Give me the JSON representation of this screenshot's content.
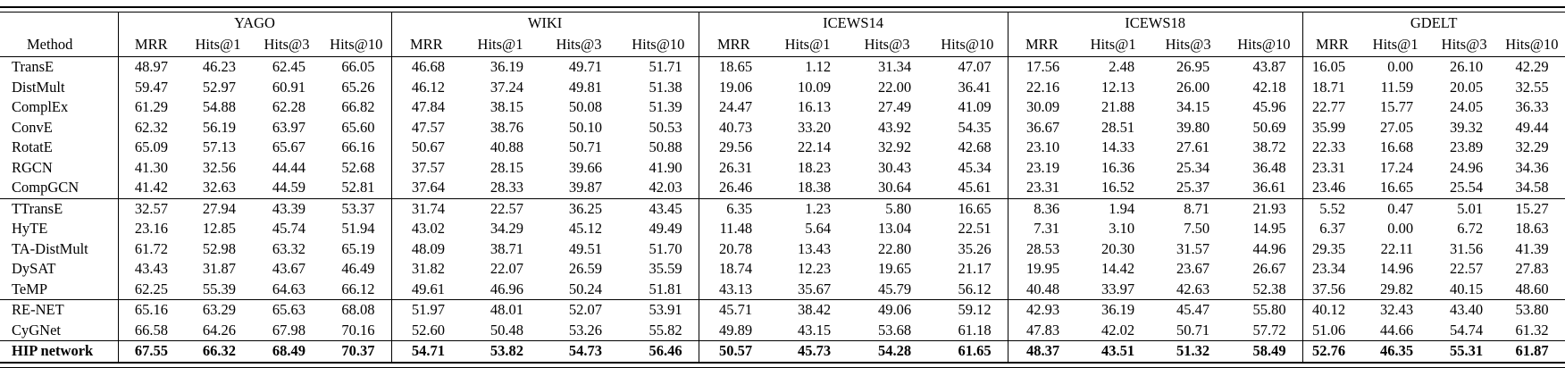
{
  "colors": {
    "text": "#000000",
    "background": "#ffffff"
  },
  "table": {
    "method_header": "Method",
    "datasets": [
      "YAGO",
      "WIKI",
      "ICEWS14",
      "ICEWS18",
      "GDELT"
    ],
    "metrics": [
      "MRR",
      "Hits@1",
      "Hits@3",
      "Hits@10"
    ],
    "sections": [
      {
        "rows": [
          {
            "method": "TransE",
            "values": [
              "48.97",
              "46.23",
              "62.45",
              "66.05",
              "46.68",
              "36.19",
              "49.71",
              "51.71",
              "18.65",
              "1.12",
              "31.34",
              "47.07",
              "17.56",
              "2.48",
              "26.95",
              "43.87",
              "16.05",
              "0.00",
              "26.10",
              "42.29"
            ]
          },
          {
            "method": "DistMult",
            "values": [
              "59.47",
              "52.97",
              "60.91",
              "65.26",
              "46.12",
              "37.24",
              "49.81",
              "51.38",
              "19.06",
              "10.09",
              "22.00",
              "36.41",
              "22.16",
              "12.13",
              "26.00",
              "42.18",
              "18.71",
              "11.59",
              "20.05",
              "32.55"
            ]
          },
          {
            "method": "ComplEx",
            "values": [
              "61.29",
              "54.88",
              "62.28",
              "66.82",
              "47.84",
              "38.15",
              "50.08",
              "51.39",
              "24.47",
              "16.13",
              "27.49",
              "41.09",
              "30.09",
              "21.88",
              "34.15",
              "45.96",
              "22.77",
              "15.77",
              "24.05",
              "36.33"
            ]
          },
          {
            "method": "ConvE",
            "values": [
              "62.32",
              "56.19",
              "63.97",
              "65.60",
              "47.57",
              "38.76",
              "50.10",
              "50.53",
              "40.73",
              "33.20",
              "43.92",
              "54.35",
              "36.67",
              "28.51",
              "39.80",
              "50.69",
              "35.99",
              "27.05",
              "39.32",
              "49.44"
            ]
          },
          {
            "method": "RotatE",
            "values": [
              "65.09",
              "57.13",
              "65.67",
              "66.16",
              "50.67",
              "40.88",
              "50.71",
              "50.88",
              "29.56",
              "22.14",
              "32.92",
              "42.68",
              "23.10",
              "14.33",
              "27.61",
              "38.72",
              "22.33",
              "16.68",
              "23.89",
              "32.29"
            ]
          },
          {
            "method": "RGCN",
            "values": [
              "41.30",
              "32.56",
              "44.44",
              "52.68",
              "37.57",
              "28.15",
              "39.66",
              "41.90",
              "26.31",
              "18.23",
              "30.43",
              "45.34",
              "23.19",
              "16.36",
              "25.34",
              "36.48",
              "23.31",
              "17.24",
              "24.96",
              "34.36"
            ]
          },
          {
            "method": "CompGCN",
            "values": [
              "41.42",
              "32.63",
              "44.59",
              "52.81",
              "37.64",
              "28.33",
              "39.87",
              "42.03",
              "26.46",
              "18.38",
              "30.64",
              "45.61",
              "23.31",
              "16.52",
              "25.37",
              "36.61",
              "23.46",
              "16.65",
              "25.54",
              "34.58"
            ]
          }
        ]
      },
      {
        "rows": [
          {
            "method": "TTransE",
            "values": [
              "32.57",
              "27.94",
              "43.39",
              "53.37",
              "31.74",
              "22.57",
              "36.25",
              "43.45",
              "6.35",
              "1.23",
              "5.80",
              "16.65",
              "8.36",
              "1.94",
              "8.71",
              "21.93",
              "5.52",
              "0.47",
              "5.01",
              "15.27"
            ]
          },
          {
            "method": "HyTE",
            "values": [
              "23.16",
              "12.85",
              "45.74",
              "51.94",
              "43.02",
              "34.29",
              "45.12",
              "49.49",
              "11.48",
              "5.64",
              "13.04",
              "22.51",
              "7.31",
              "3.10",
              "7.50",
              "14.95",
              "6.37",
              "0.00",
              "6.72",
              "18.63"
            ]
          },
          {
            "method": "TA-DistMult",
            "values": [
              "61.72",
              "52.98",
              "63.32",
              "65.19",
              "48.09",
              "38.71",
              "49.51",
              "51.70",
              "20.78",
              "13.43",
              "22.80",
              "35.26",
              "28.53",
              "20.30",
              "31.57",
              "44.96",
              "29.35",
              "22.11",
              "31.56",
              "41.39"
            ]
          },
          {
            "method": "DySAT",
            "values": [
              "43.43",
              "31.87",
              "43.67",
              "46.49",
              "31.82",
              "22.07",
              "26.59",
              "35.59",
              "18.74",
              "12.23",
              "19.65",
              "21.17",
              "19.95",
              "14.42",
              "23.67",
              "26.67",
              "23.34",
              "14.96",
              "22.57",
              "27.83"
            ]
          },
          {
            "method": "TeMP",
            "values": [
              "62.25",
              "55.39",
              "64.63",
              "66.12",
              "49.61",
              "46.96",
              "50.24",
              "51.81",
              "43.13",
              "35.67",
              "45.79",
              "56.12",
              "40.48",
              "33.97",
              "42.63",
              "52.38",
              "37.56",
              "29.82",
              "40.15",
              "48.60"
            ]
          }
        ]
      },
      {
        "rows": [
          {
            "method": "RE-NET",
            "values": [
              "65.16",
              "63.29",
              "65.63",
              "68.08",
              "51.97",
              "48.01",
              "52.07",
              "53.91",
              "45.71",
              "38.42",
              "49.06",
              "59.12",
              "42.93",
              "36.19",
              "45.47",
              "55.80",
              "40.12",
              "32.43",
              "43.40",
              "53.80"
            ]
          },
          {
            "method": "CyGNet",
            "values": [
              "66.58",
              "64.26",
              "67.98",
              "70.16",
              "52.60",
              "50.48",
              "53.26",
              "55.82",
              "49.89",
              "43.15",
              "53.68",
              "61.18",
              "47.83",
              "42.02",
              "50.71",
              "57.72",
              "51.06",
              "44.66",
              "54.74",
              "61.32"
            ]
          }
        ]
      },
      {
        "rows": [
          {
            "method": "HIP network",
            "bold": true,
            "values": [
              "67.55",
              "66.32",
              "68.49",
              "70.37",
              "54.71",
              "53.82",
              "54.73",
              "56.46",
              "50.57",
              "45.73",
              "54.28",
              "61.65",
              "48.37",
              "43.51",
              "51.32",
              "58.49",
              "52.76",
              "46.35",
              "55.31",
              "61.87"
            ]
          }
        ]
      }
    ]
  }
}
